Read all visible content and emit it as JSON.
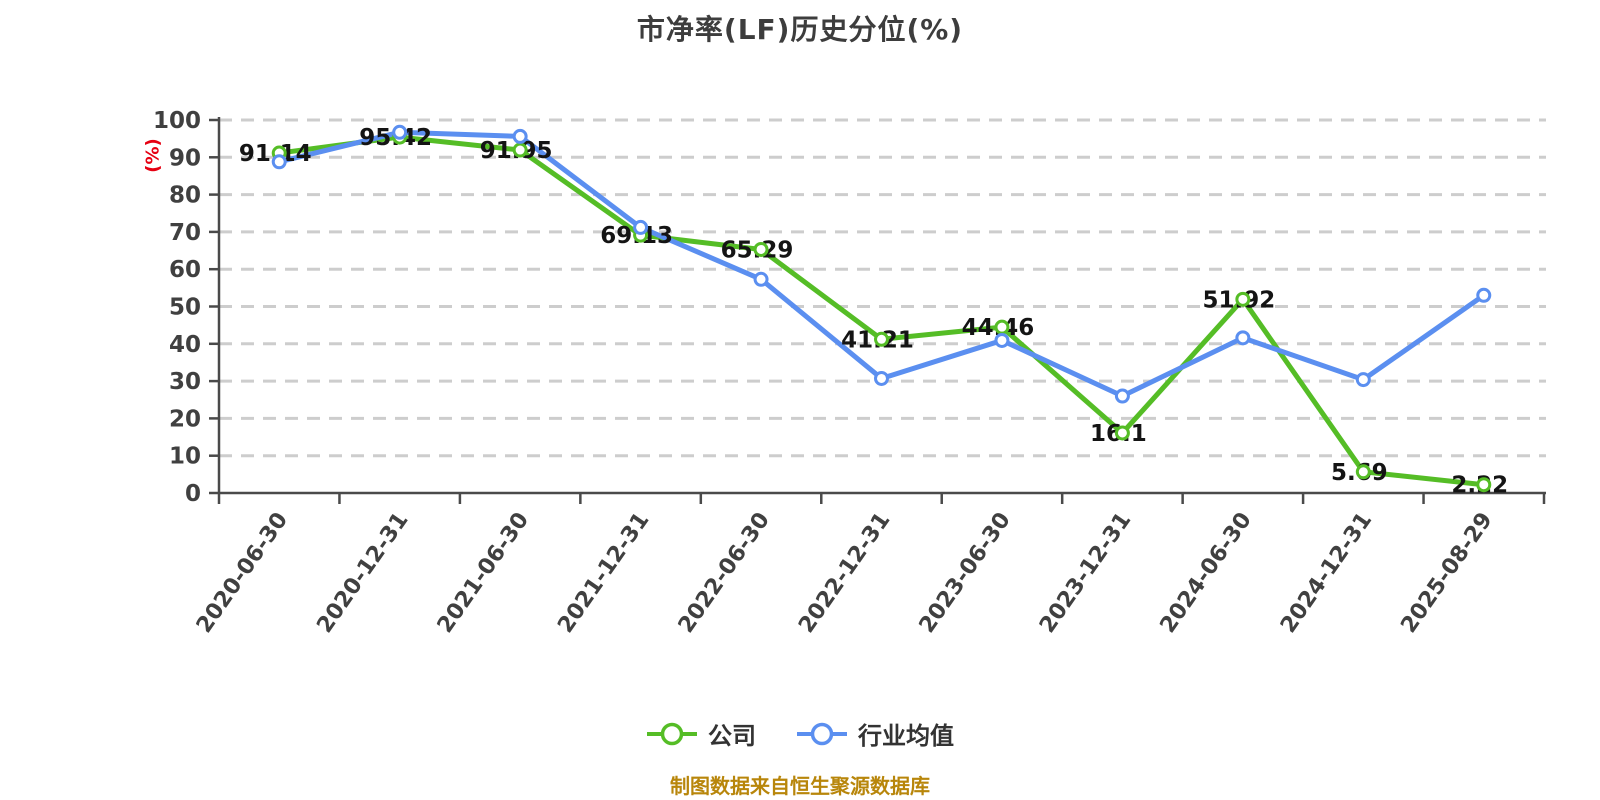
{
  "title": "市净率(LF)历史分位(%)",
  "source_note": "制图数据来自恒生聚源数据库",
  "y_axis": {
    "unit": "(%)",
    "min": 0,
    "max": 100,
    "tick_step": 10,
    "tick_labels": [
      "0",
      "10",
      "20",
      "30",
      "40",
      "50",
      "60",
      "70",
      "80",
      "90",
      "100"
    ]
  },
  "legend": [
    {
      "label": "公司"
    },
    {
      "label": "行业均值"
    }
  ],
  "colors": {
    "company_green": "#55bd26",
    "industry_blue": "#5b8ff0",
    "title_text": "#3d3d3d",
    "axis_text": "#404040",
    "legend_text": "#333333",
    "value_label_text": "#141414",
    "unit_label_red": "#e60012",
    "source_gold": "#b8860b",
    "gridline": "#cdcdcd",
    "axis_line": "#4a4a4a",
    "marker_fill": "#ffffff",
    "background": "#ffffff"
  },
  "chart_data": {
    "type": "line",
    "title": "市净率(LF)历史分位(%)",
    "categories": [
      "2020-06-30",
      "2020-12-31",
      "2021-06-30",
      "2021-12-31",
      "2022-06-30",
      "2022-12-31",
      "2023-06-30",
      "2023-12-31",
      "2024-06-30",
      "2024-12-31",
      "2025-08-29"
    ],
    "series": [
      {
        "name": "公司",
        "color": "#55bd26",
        "values": [
          91.14,
          95.42,
          91.95,
          69.13,
          65.29,
          41.21,
          44.46,
          16.1,
          51.92,
          5.69,
          2.22
        ],
        "value_labels_shown": true
      },
      {
        "name": "行业均值",
        "color": "#5b8ff0",
        "values": [
          88.8,
          96.7,
          95.6,
          71.2,
          57.3,
          30.7,
          40.9,
          26,
          41.6,
          30.4,
          53
        ],
        "value_labels_shown": false
      }
    ],
    "xlabel": "",
    "ylabel": "(%)",
    "ylim": [
      0,
      100
    ],
    "grid": "horizontal-dashed",
    "legend_position": "bottom",
    "x_label_rotation_deg": -55
  }
}
